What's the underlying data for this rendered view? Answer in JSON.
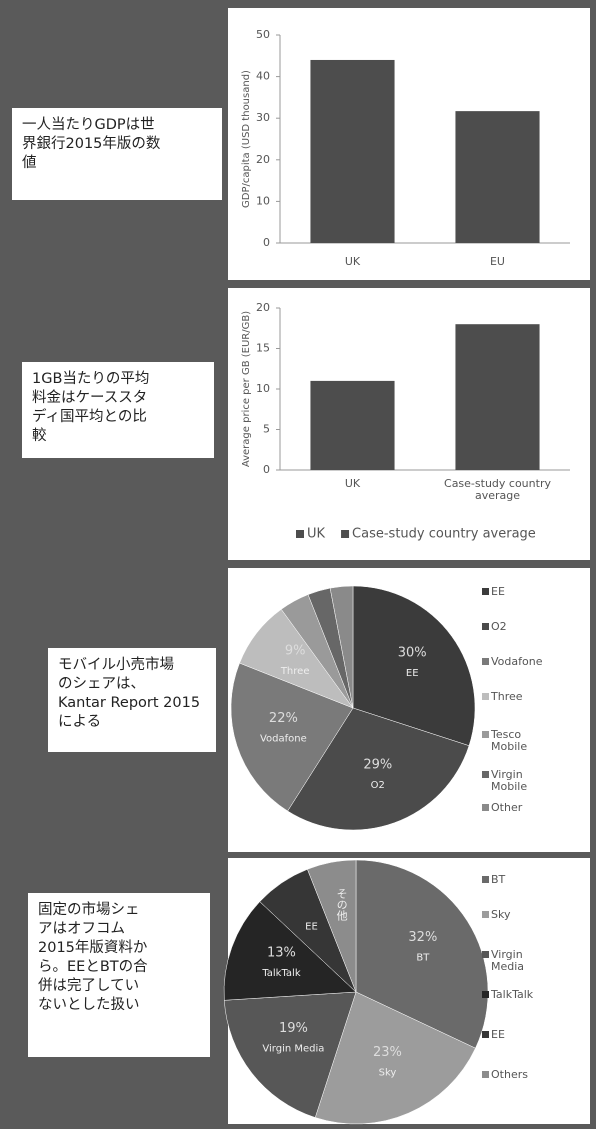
{
  "chart_data": [
    {
      "type": "bar",
      "annotation": [
        "一人当たりGDPは世",
        "界銀行2015年版の数",
        "値"
      ],
      "ylabel": "GDP/capita (USD thousand)",
      "categories": [
        "UK",
        "EU"
      ],
      "values": [
        44,
        31.7
      ],
      "color": "#4d4d4d",
      "ylim": [
        0,
        50
      ],
      "yticks": [
        0,
        10,
        20,
        30,
        40,
        50
      ]
    },
    {
      "type": "bar",
      "annotation": [
        "1GB当たりの平均",
        "料金はケーススタ",
        "ディ国平均との比",
        "較"
      ],
      "ylabel": "Average price per GB (EUR/GB)",
      "categories": [
        "UK",
        "Case-study country average"
      ],
      "series": [
        {
          "name": "UK",
          "color": "#4d4d4d",
          "values": [
            11,
            null
          ]
        },
        {
          "name": "Case-study country average",
          "color": "#4d4d4d",
          "values": [
            null,
            18
          ]
        }
      ],
      "ylim": [
        0,
        20
      ],
      "yticks": [
        0,
        5,
        10,
        15,
        20
      ]
    },
    {
      "type": "pie",
      "annotation": [
        "モバイル小売市場",
        "のシェアは、",
        "Kantar Report 2015",
        "による"
      ],
      "categories": [
        "EE",
        "O2",
        "Vodafone",
        "Three",
        "Tesco Mobile",
        "Virgin Mobile",
        "Other"
      ],
      "values": [
        30,
        29,
        22,
        9,
        4,
        3,
        3
      ],
      "value_labels": [
        "30%",
        "29%",
        "22%",
        "9%",
        null,
        null,
        null
      ],
      "slice_labels": [
        "EE",
        "O2",
        "Vodafone",
        "Three",
        null,
        null,
        null
      ],
      "colors": [
        "#3b3b3b",
        "#4b4b4b",
        "#7a7a7a",
        "#bdbdbd",
        "#9a9a9a",
        "#676767",
        "#8a8a8a"
      ]
    },
    {
      "type": "pie",
      "annotation": [
        "固定の市場シェ",
        "アはオフコム",
        "2015年版資料か",
        "ら。EEとBTの合",
        "併は完了してい",
        "ないとした扱い"
      ],
      "categories": [
        "BT",
        "Sky",
        "Virgin Media",
        "TalkTalk",
        "EE",
        "Others"
      ],
      "values": [
        32,
        23,
        19,
        13,
        7,
        6
      ],
      "value_labels": [
        "32%",
        "23%",
        "19%",
        "13%",
        null,
        null
      ],
      "slice_labels": [
        "BT",
        "Sky",
        "Virgin Media",
        "TalkTalk",
        "EE",
        "その他"
      ],
      "colors": [
        "#6a6a6a",
        "#9c9c9c",
        "#575757",
        "#252525",
        "#363636",
        "#8c8c8c"
      ]
    }
  ]
}
